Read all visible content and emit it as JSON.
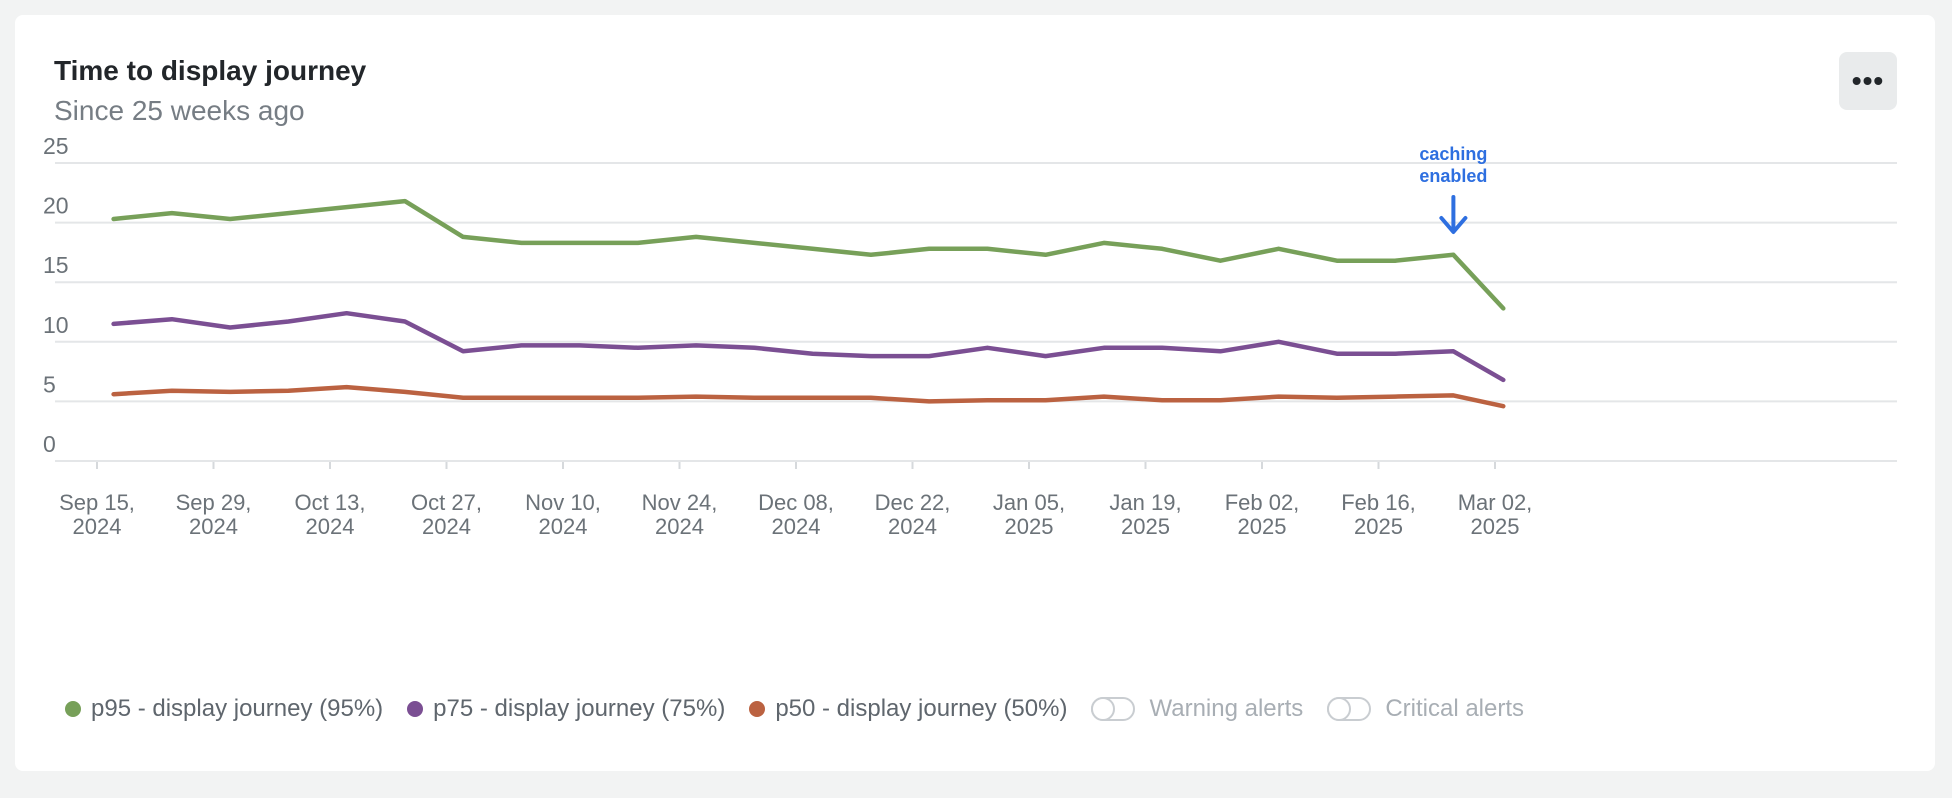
{
  "card": {
    "title": "Time to display journey",
    "subtitle": "Since 25 weeks ago",
    "menu_label": "•••"
  },
  "chart_data": {
    "type": "line",
    "ylim": [
      0,
      25
    ],
    "y_ticks": [
      "0",
      "5",
      "10",
      "15",
      "20",
      "25"
    ],
    "grid": true,
    "x_tick_labels": [
      [
        "Sep 15,",
        "2024"
      ],
      [
        "Sep 29,",
        "2024"
      ],
      [
        "Oct 13,",
        "2024"
      ],
      [
        "Oct 27,",
        "2024"
      ],
      [
        "Nov 10,",
        "2024"
      ],
      [
        "Nov 24,",
        "2024"
      ],
      [
        "Dec 08,",
        "2024"
      ],
      [
        "Dec 22,",
        "2024"
      ],
      [
        "Jan 05,",
        "2025"
      ],
      [
        "Jan 19,",
        "2025"
      ],
      [
        "Feb 02,",
        "2025"
      ],
      [
        "Feb 16,",
        "2025"
      ],
      [
        "Mar 02,",
        "2025"
      ]
    ],
    "x": [
      "2024-09-17",
      "2024-09-24",
      "2024-10-01",
      "2024-10-08",
      "2024-10-15",
      "2024-10-22",
      "2024-10-29",
      "2024-11-05",
      "2024-11-12",
      "2024-11-19",
      "2024-11-26",
      "2024-12-03",
      "2024-12-10",
      "2024-12-17",
      "2024-12-24",
      "2024-12-31",
      "2025-01-07",
      "2025-01-14",
      "2025-01-21",
      "2025-01-28",
      "2025-02-04",
      "2025-02-11",
      "2025-02-18",
      "2025-02-25",
      "2025-03-03"
    ],
    "series": [
      {
        "name": "p95 - display journey (95%)",
        "color": "#77a059",
        "values": [
          20.3,
          20.8,
          20.3,
          20.8,
          21.3,
          21.8,
          18.8,
          18.3,
          18.3,
          18.3,
          18.8,
          18.3,
          17.8,
          17.3,
          17.8,
          17.8,
          17.3,
          18.3,
          17.8,
          16.8,
          17.8,
          16.8,
          16.8,
          17.3,
          12.8
        ]
      },
      {
        "name": "p75 - display journey (75%)",
        "color": "#7b4f93",
        "values": [
          11.5,
          11.9,
          11.2,
          11.7,
          12.4,
          11.7,
          9.2,
          9.7,
          9.7,
          9.5,
          9.7,
          9.5,
          9.0,
          8.8,
          8.8,
          9.5,
          8.8,
          9.5,
          9.5,
          9.2,
          10.0,
          9.0,
          9.0,
          9.2,
          6.8
        ]
      },
      {
        "name": "p50 - display journey (50%)",
        "color": "#bb6241",
        "values": [
          5.6,
          5.9,
          5.8,
          5.9,
          6.2,
          5.8,
          5.3,
          5.3,
          5.3,
          5.3,
          5.4,
          5.3,
          5.3,
          5.3,
          5.0,
          5.1,
          5.1,
          5.4,
          5.1,
          5.1,
          5.4,
          5.3,
          5.4,
          5.5,
          4.6
        ]
      }
    ],
    "annotation": {
      "lines": [
        "caching",
        "enabled"
      ],
      "x": "2025-02-25",
      "color": "#2e6fe0"
    }
  },
  "legend": {
    "toggles": [
      {
        "label": "Warning alerts"
      },
      {
        "label": "Critical alerts"
      }
    ]
  }
}
